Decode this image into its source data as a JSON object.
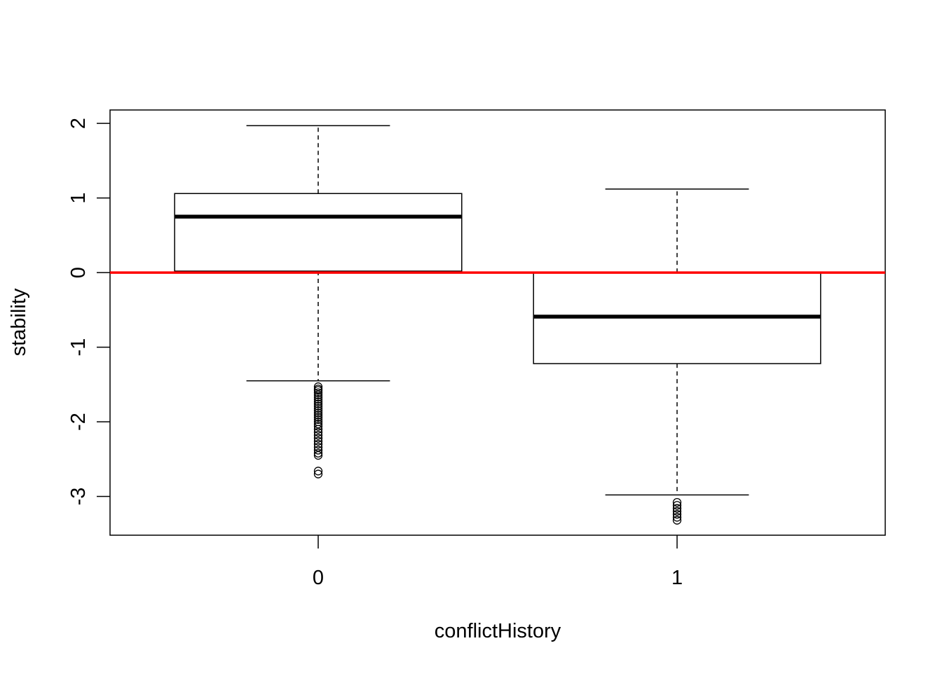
{
  "chart_data": {
    "type": "boxplot",
    "title": "",
    "xlabel": "conflictHistory",
    "ylabel": "stability",
    "categories": [
      "0",
      "1"
    ],
    "yticks": [
      "-3",
      "-2",
      "-1",
      "0",
      "1",
      "2"
    ],
    "ylim": [
      -3.52,
      2.18
    ],
    "boxes": [
      {
        "category": "0",
        "whisker_low": -1.45,
        "q1": 0.02,
        "median": 0.75,
        "q3": 1.06,
        "whisker_high": 1.97,
        "outliers": [
          -1.53,
          -1.56,
          -1.58,
          -1.61,
          -1.64,
          -1.67,
          -1.7,
          -1.73,
          -1.76,
          -1.79,
          -1.82,
          -1.85,
          -1.88,
          -1.91,
          -1.94,
          -1.97,
          -2.0,
          -2.03,
          -2.06,
          -2.1,
          -2.14,
          -2.18,
          -2.22,
          -2.26,
          -2.3,
          -2.34,
          -2.38,
          -2.42,
          -2.45,
          -2.66,
          -2.7
        ]
      },
      {
        "category": "1",
        "whisker_low": -2.98,
        "q1": -1.22,
        "median": -0.59,
        "q3": 0.0,
        "whisker_high": 1.12,
        "outliers": [
          -3.08,
          -3.12,
          -3.16,
          -3.2,
          -3.24,
          -3.28,
          -3.32
        ]
      }
    ],
    "reference_line": {
      "y": 0,
      "color": "#ff0000"
    },
    "grid": false,
    "legend": "none"
  }
}
